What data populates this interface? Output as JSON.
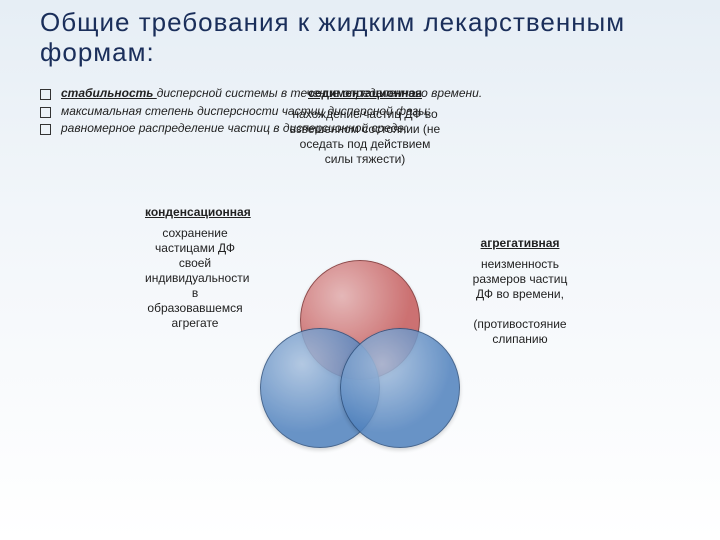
{
  "title": "Общие требования к жидким лекарственным формам:",
  "bullets": [
    {
      "strong": "стабильность ",
      "rest": "дисперсной системы в течение определенного времени."
    },
    {
      "strong": "",
      "rest": "максимальная степень дисперсности частиц дисперсной фазы;"
    },
    {
      "strong": "",
      "rest": "равномерное распределение частиц в дисперсионной среде;"
    }
  ],
  "venn": {
    "top": {
      "color": "#c55a5a",
      "border": "#7a2e2e"
    },
    "left": {
      "color": "#4f81bd",
      "border": "#2c4e7a"
    },
    "right": {
      "color": "#4f81bd",
      "border": "#2c4e7a"
    }
  },
  "labels": {
    "top": {
      "hdr": "седиментационная",
      "body": "нахождение частиц ДФ во взвешенном состоянии (не оседать под действием силы тяжести)"
    },
    "left": {
      "hdr": "конденсационная",
      "body": "сохранение частицами ДФ своей индивидуальности в образовавшемся агрегате"
    },
    "right": {
      "hdr": "агрегативная",
      "body": "неизменность размеров частиц ДФ во времени,\n\n(противостояние слипанию"
    }
  },
  "style": {
    "title_fontsize": 26,
    "title_color": "#1a2e5a",
    "bullet_fontsize": 12,
    "label_fontsize": 12,
    "bg_top": "#e6eef5",
    "bg_bottom": "#ffffff"
  }
}
